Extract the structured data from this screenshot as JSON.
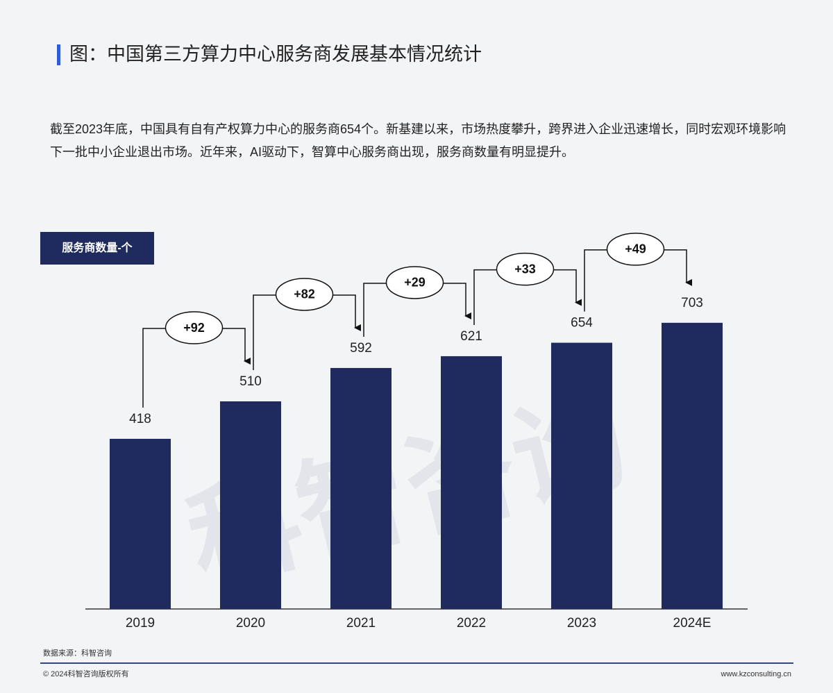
{
  "title": "图：中国第三方算力中心服务商发展基本情况统计",
  "description": "截至2023年底，中国具有自有产权算力中心的服务商654个。新基建以来，市场热度攀升，跨界进入企业迅速增长，同时宏观环境影响下一批中小企业退出市场。近年来，AI驱动下，智算中心服务商出现，服务商数量有明显提升。",
  "watermark": "科智咨询",
  "chart_data": {
    "type": "bar",
    "badge": "服务商数量-个",
    "categories": [
      "2019",
      "2020",
      "2021",
      "2022",
      "2023",
      "2024E"
    ],
    "values": [
      418,
      510,
      592,
      621,
      654,
      703
    ],
    "color": "#1f2a5e",
    "ylim": [
      0,
      800
    ],
    "annotations": [
      "+92",
      "+82",
      "+29",
      "+33",
      "+49"
    ]
  },
  "source": "数据来源：科智咨询",
  "footer": {
    "copyright": "© 2024科智咨询版权所有",
    "website": "www.kzconsulting.cn"
  }
}
